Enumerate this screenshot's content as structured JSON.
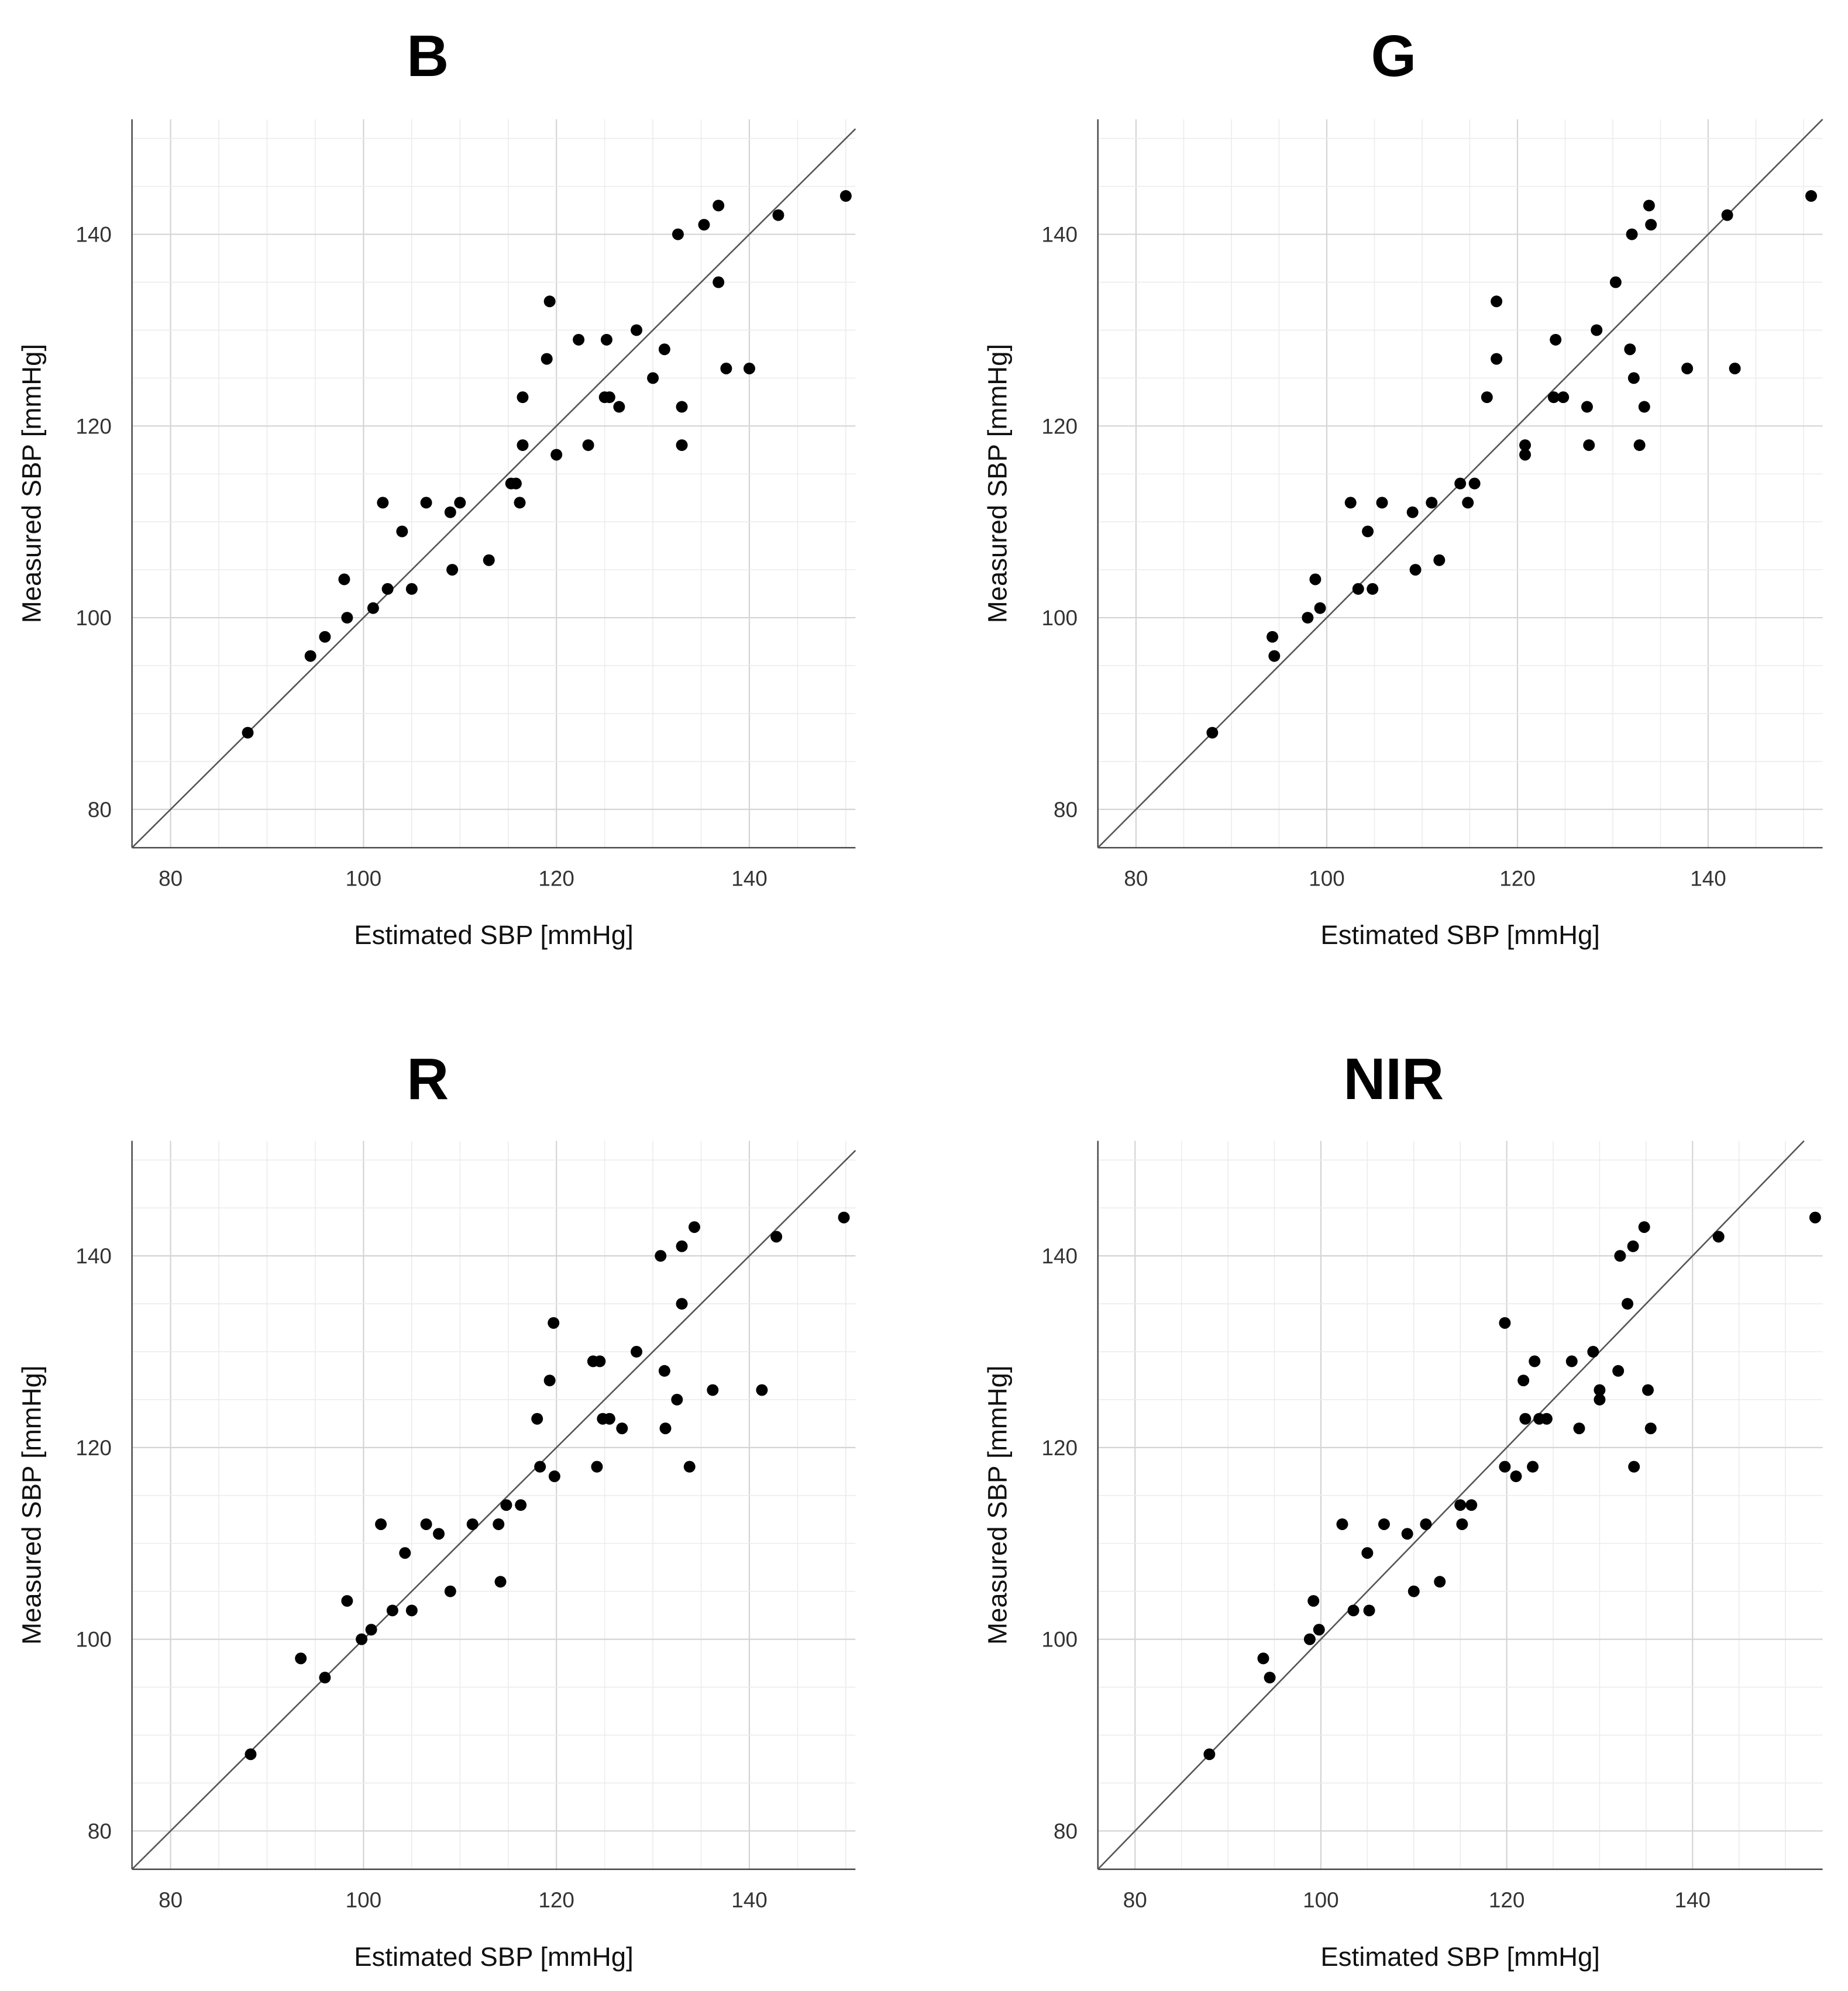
{
  "chart_data": [
    {
      "type": "scatter",
      "title": "B",
      "xlabel": "Estimated SBP [mmHg]",
      "ylabel": "Measured SBP [mmHg]",
      "xlim": [
        76,
        151
      ],
      "ylim": [
        76,
        152
      ],
      "xticks": [
        80,
        100,
        120,
        140
      ],
      "yticks": [
        80,
        100,
        120,
        140
      ],
      "grid": true,
      "reference_line": "y = x",
      "points": [
        [
          88,
          88
        ],
        [
          94.5,
          96
        ],
        [
          96,
          98
        ],
        [
          98,
          104
        ],
        [
          98.3,
          100
        ],
        [
          101,
          101
        ],
        [
          102,
          112
        ],
        [
          102.5,
          103
        ],
        [
          104,
          109
        ],
        [
          105,
          103
        ],
        [
          106.5,
          112
        ],
        [
          109,
          111
        ],
        [
          109.2,
          105
        ],
        [
          110,
          112
        ],
        [
          113,
          106
        ],
        [
          115.3,
          114
        ],
        [
          115.8,
          114
        ],
        [
          116.2,
          112
        ],
        [
          116.5,
          123
        ],
        [
          116.5,
          118
        ],
        [
          119,
          127
        ],
        [
          119.3,
          133
        ],
        [
          120,
          117
        ],
        [
          122.3,
          129
        ],
        [
          123.3,
          118
        ],
        [
          125,
          123
        ],
        [
          125.2,
          129
        ],
        [
          125.5,
          123
        ],
        [
          126.5,
          122
        ],
        [
          128.3,
          130
        ],
        [
          130,
          125
        ],
        [
          131.2,
          128
        ],
        [
          132.6,
          140
        ],
        [
          133,
          122
        ],
        [
          133,
          118
        ],
        [
          135.3,
          141
        ],
        [
          136.8,
          135
        ],
        [
          136.8,
          143
        ],
        [
          137.6,
          126
        ],
        [
          140,
          126
        ],
        [
          143,
          142
        ],
        [
          150,
          144
        ]
      ]
    },
    {
      "type": "scatter",
      "title": "G",
      "xlabel": "Estimated SBP [mmHg]",
      "ylabel": "Measured SBP [mmHg]",
      "xlim": [
        76,
        152
      ],
      "ylim": [
        76,
        152
      ],
      "xticks": [
        80,
        100,
        120,
        140
      ],
      "yticks": [
        80,
        100,
        120,
        140
      ],
      "grid": true,
      "reference_line": "y = x",
      "points": [
        [
          88,
          88
        ],
        [
          94.3,
          98
        ],
        [
          94.5,
          96
        ],
        [
          98,
          100
        ],
        [
          98.8,
          104
        ],
        [
          99.3,
          101
        ],
        [
          102.5,
          112
        ],
        [
          103.3,
          103
        ],
        [
          104.3,
          109
        ],
        [
          104.8,
          103
        ],
        [
          105.8,
          112
        ],
        [
          109,
          111
        ],
        [
          109.3,
          105
        ],
        [
          111,
          112
        ],
        [
          111.8,
          106
        ],
        [
          114,
          114
        ],
        [
          114.8,
          112
        ],
        [
          115.5,
          114
        ],
        [
          116.8,
          123
        ],
        [
          117.8,
          127
        ],
        [
          117.8,
          133
        ],
        [
          120.8,
          118
        ],
        [
          120.8,
          117
        ],
        [
          123.8,
          123
        ],
        [
          124,
          129
        ],
        [
          124.8,
          123
        ],
        [
          127.3,
          122
        ],
        [
          127.5,
          118
        ],
        [
          128.3,
          130
        ],
        [
          130.3,
          135
        ],
        [
          131.8,
          128
        ],
        [
          132,
          140
        ],
        [
          132.2,
          125
        ],
        [
          132.8,
          118
        ],
        [
          133.3,
          122
        ],
        [
          133.8,
          143
        ],
        [
          134,
          141
        ],
        [
          137.8,
          126
        ],
        [
          142,
          142
        ],
        [
          142.8,
          126
        ],
        [
          150.8,
          144
        ]
      ]
    },
    {
      "type": "scatter",
      "title": "R",
      "xlabel": "Estimated SBP [mmHg]",
      "ylabel": "Measured SBP [mmHg]",
      "xlim": [
        76,
        151
      ],
      "ylim": [
        76,
        152
      ],
      "xticks": [
        80,
        100,
        120,
        140
      ],
      "yticks": [
        80,
        100,
        120,
        140
      ],
      "grid": true,
      "reference_line": "y = x",
      "points": [
        [
          88.3,
          88
        ],
        [
          93.5,
          98
        ],
        [
          96,
          96
        ],
        [
          98.3,
          104
        ],
        [
          99.8,
          100
        ],
        [
          100.8,
          101
        ],
        [
          101.8,
          112
        ],
        [
          103,
          103
        ],
        [
          104.3,
          109
        ],
        [
          105,
          103
        ],
        [
          106.5,
          112
        ],
        [
          107.8,
          111
        ],
        [
          109,
          105
        ],
        [
          111.3,
          112
        ],
        [
          114,
          112
        ],
        [
          114.2,
          106
        ],
        [
          114.8,
          114
        ],
        [
          116.3,
          114
        ],
        [
          118,
          123
        ],
        [
          118.3,
          118
        ],
        [
          119.3,
          127
        ],
        [
          119.7,
          133
        ],
        [
          119.8,
          117
        ],
        [
          123.8,
          129
        ],
        [
          124.2,
          118
        ],
        [
          124.5,
          129
        ],
        [
          124.8,
          123
        ],
        [
          125.5,
          123
        ],
        [
          126.8,
          122
        ],
        [
          128.3,
          130
        ],
        [
          130.8,
          140
        ],
        [
          131.2,
          128
        ],
        [
          131.3,
          122
        ],
        [
          132.5,
          125
        ],
        [
          133,
          135
        ],
        [
          133,
          141
        ],
        [
          133.8,
          118
        ],
        [
          134.3,
          143
        ],
        [
          136.2,
          126
        ],
        [
          141.3,
          126
        ],
        [
          142.8,
          142
        ],
        [
          149.8,
          144
        ]
      ]
    },
    {
      "type": "scatter",
      "title": "NIR",
      "xlabel": "Estimated SBP [mmHg]",
      "ylabel": "Measured SBP [mmHg]",
      "xlim": [
        76,
        154
      ],
      "ylim": [
        76,
        152
      ],
      "xticks": [
        80,
        100,
        120,
        140
      ],
      "yticks": [
        80,
        100,
        120,
        140
      ],
      "grid": true,
      "reference_line": "y = x",
      "points": [
        [
          88,
          88
        ],
        [
          93.8,
          98
        ],
        [
          94.5,
          96
        ],
        [
          98.8,
          100
        ],
        [
          99.2,
          104
        ],
        [
          99.8,
          101
        ],
        [
          102.3,
          112
        ],
        [
          103.5,
          103
        ],
        [
          105,
          109
        ],
        [
          105.2,
          103
        ],
        [
          106.8,
          112
        ],
        [
          109.3,
          111
        ],
        [
          110,
          105
        ],
        [
          111.3,
          112
        ],
        [
          112.8,
          106
        ],
        [
          115,
          114
        ],
        [
          115.2,
          112
        ],
        [
          116.2,
          114
        ],
        [
          119.8,
          118
        ],
        [
          119.8,
          133
        ],
        [
          121.8,
          127
        ],
        [
          122,
          123
        ],
        [
          121,
          117
        ],
        [
          122.8,
          118
        ],
        [
          123,
          129
        ],
        [
          123.5,
          123
        ],
        [
          124.3,
          123
        ],
        [
          127,
          129
        ],
        [
          127.8,
          122
        ],
        [
          129.3,
          130
        ],
        [
          130,
          126
        ],
        [
          130,
          125
        ],
        [
          132,
          128
        ],
        [
          132.2,
          140
        ],
        [
          133,
          135
        ],
        [
          133.6,
          141
        ],
        [
          133.7,
          118
        ],
        [
          134.8,
          143
        ],
        [
          135.2,
          126
        ],
        [
          135.5,
          122
        ],
        [
          142.8,
          142
        ],
        [
          153.2,
          144
        ]
      ]
    }
  ]
}
